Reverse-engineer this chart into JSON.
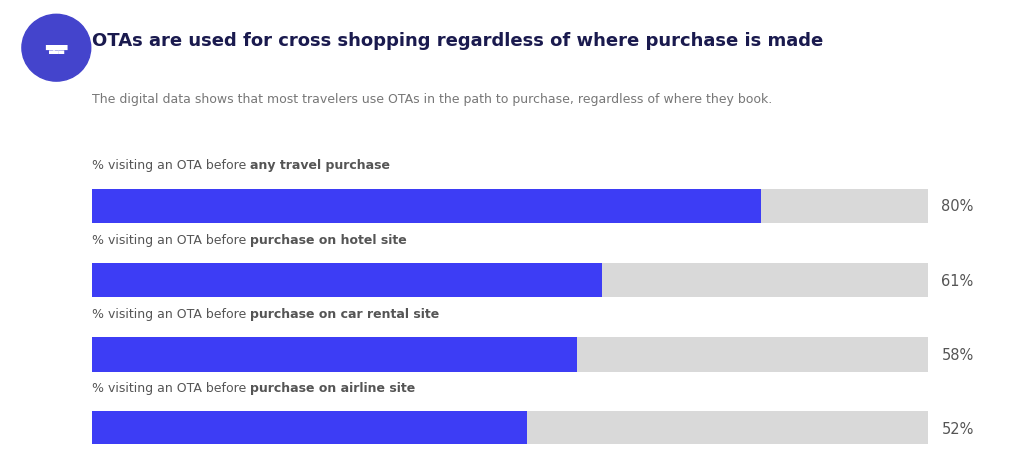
{
  "title": "OTAs are used for cross shopping regardless of where purchase is made",
  "subtitle": "The digital data shows that most travelers use OTAs in the path to purchase, regardless of where they book.",
  "bars": [
    {
      "label_normal": "% visiting an OTA before ",
      "label_bold": "any travel purchase",
      "value": 80,
      "label_text": "80%"
    },
    {
      "label_normal": "% visiting an OTA before ",
      "label_bold": "purchase on hotel site",
      "value": 61,
      "label_text": "61%"
    },
    {
      "label_normal": "% visiting an OTA before ",
      "label_bold": "purchase on car rental site",
      "value": 58,
      "label_text": "58%"
    },
    {
      "label_normal": "% visiting an OTA before ",
      "label_bold": "purchase on airline site",
      "value": 52,
      "label_text": "52%"
    }
  ],
  "bar_color": "#3d3df5",
  "bg_bar_color": "#d9d9d9",
  "title_color": "#1a1a4e",
  "subtitle_color": "#777777",
  "label_color": "#555555",
  "pct_color": "#555555",
  "background_color": "#ffffff",
  "icon_bg_color": "#4444cc",
  "max_value": 100
}
